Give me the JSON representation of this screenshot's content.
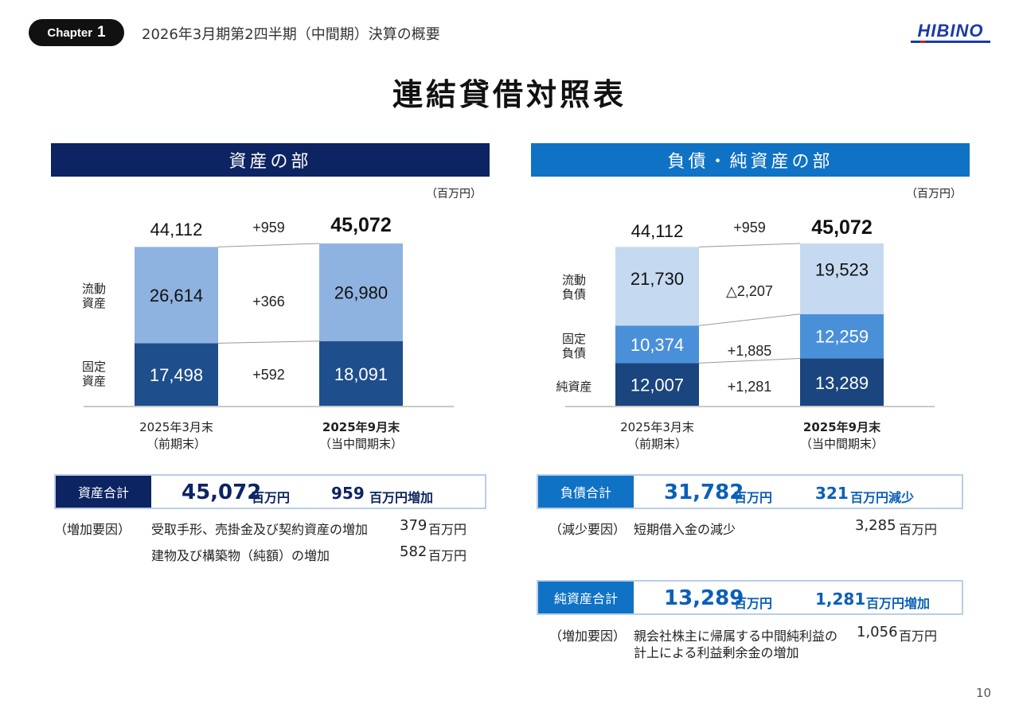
{
  "header": {
    "chapter_word": "Chapter",
    "chapter_num": "1",
    "subtitle": "2026年3月期第2四半期（中間期）決算の概要",
    "logo_text": "HIBINO"
  },
  "title": "連結貸借対照表",
  "sections": {
    "assets_title": "資産の部",
    "liab_title": "負債・純資産の部",
    "unit": "（百万円）"
  },
  "colors": {
    "navy": "#0d2462",
    "blue_header": "#0f72c4",
    "asset_current": "#8fb3e0",
    "asset_fixed": "#1f4e8c",
    "liab_current": "#c5daf0",
    "liab_fixed": "#4a90d9",
    "equity": "#1a457e",
    "accent_text": "#0a3d9c"
  },
  "chart_data": [
    {
      "type": "bar",
      "stacked": true,
      "categories": [
        "2025年3月末\n（前期末）",
        "2025年9月末\n（当中間期末）"
      ],
      "category_line1": [
        "2025年3月末",
        "2025年9月末"
      ],
      "category_line2": [
        "（前期末）",
        "（当中間期末）"
      ],
      "series": [
        {
          "name": "固定資産",
          "values": [
            17498,
            18091
          ],
          "labels": [
            "17,498",
            "18,091"
          ]
        },
        {
          "name": "流動資産",
          "values": [
            26614,
            26980
          ],
          "labels": [
            "26,614",
            "26,980"
          ]
        }
      ],
      "legend_left": [
        {
          "l1": "流動",
          "l2": "資産"
        },
        {
          "l1": "固定",
          "l2": "資産"
        }
      ],
      "totals": [
        "44,112",
        "45,072"
      ],
      "diff_total": "+959",
      "diffs": [
        "+366",
        "+592"
      ],
      "ylim": [
        0,
        46000
      ]
    },
    {
      "type": "bar",
      "stacked": true,
      "categories": [
        "2025年3月末\n（前期末）",
        "2025年9月末\n（当中間期末）"
      ],
      "category_line1": [
        "2025年3月末",
        "2025年9月末"
      ],
      "category_line2": [
        "（前期末）",
        "（当中間期末）"
      ],
      "series": [
        {
          "name": "純資産",
          "values": [
            12007,
            13289
          ],
          "labels": [
            "12,007",
            "13,289"
          ]
        },
        {
          "name": "固定負債",
          "values": [
            10374,
            12259
          ],
          "labels": [
            "10,374",
            "12,259"
          ]
        },
        {
          "name": "流動負債",
          "values": [
            21730,
            19523
          ],
          "labels": [
            "21,730",
            "19,523"
          ]
        }
      ],
      "legend_left": [
        {
          "l1": "流動",
          "l2": "負債"
        },
        {
          "l1": "固定",
          "l2": "負債"
        },
        {
          "l1": "純資産",
          "l2": ""
        }
      ],
      "totals": [
        "44,112",
        "45,072"
      ],
      "diff_total": "+959",
      "diffs": [
        "△2,207",
        "+1,885",
        "+1,281"
      ],
      "ylim": [
        0,
        46000
      ]
    }
  ],
  "summary": {
    "assets": {
      "label": "資産合計",
      "value": "45,072",
      "unit": "百万円",
      "change_value": "959",
      "change_unit": "百万円増加",
      "reason_label": "（増加要因）",
      "reasons": [
        {
          "text": "受取手形、売掛金及び契約資産の増加",
          "amount": "379",
          "unit": "百万円"
        },
        {
          "text": "建物及び構築物（純額）の増加",
          "amount": "582",
          "unit": "百万円"
        }
      ]
    },
    "liabilities": {
      "label": "負債合計",
      "value": "31,782",
      "unit": "百万円",
      "change_value": "321",
      "change_unit": "百万円減少",
      "reason_label": "（減少要因）",
      "reasons": [
        {
          "text": "短期借入金の減少",
          "amount": "3,285",
          "unit": "百万円"
        }
      ]
    },
    "equity": {
      "label": "純資産合計",
      "value": "13,289",
      "unit": "百万円",
      "change_value": "1,281",
      "change_unit": "百万円増加",
      "reason_label": "（増加要因）",
      "reasons": [
        {
          "text": "親会社株主に帰属する中間純利益の",
          "text2": "計上による利益剰余金の増加",
          "amount": "1,056",
          "unit": "百万円"
        }
      ]
    }
  },
  "page_number": "10"
}
